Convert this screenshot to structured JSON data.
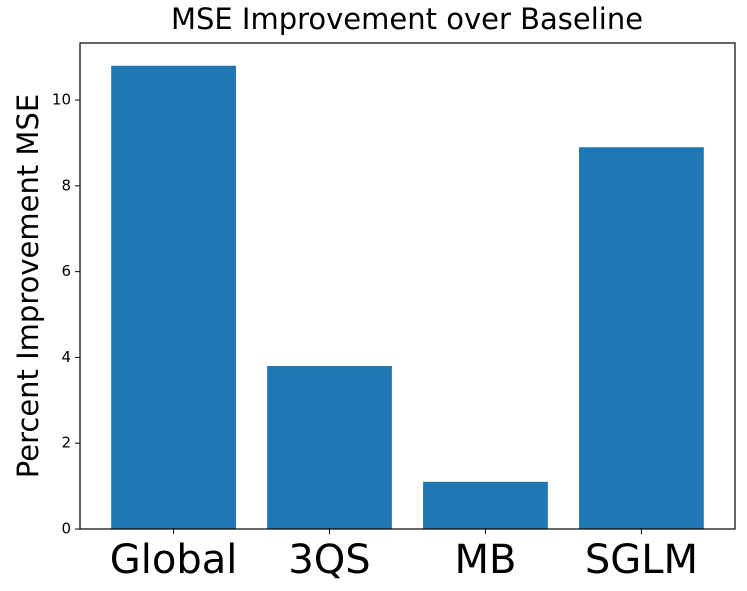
{
  "chart_data": {
    "type": "bar",
    "title": "MSE Improvement over Baseline",
    "ylabel": "Percent Improvement MSE",
    "categories": [
      "Global",
      "3QS",
      "MB",
      "SGLM"
    ],
    "values": [
      10.8,
      3.8,
      1.1,
      8.9
    ],
    "color": "#1f77b4",
    "ylim": [
      0,
      11.33
    ],
    "yticks": [
      0,
      2,
      4,
      6,
      8,
      10
    ]
  }
}
